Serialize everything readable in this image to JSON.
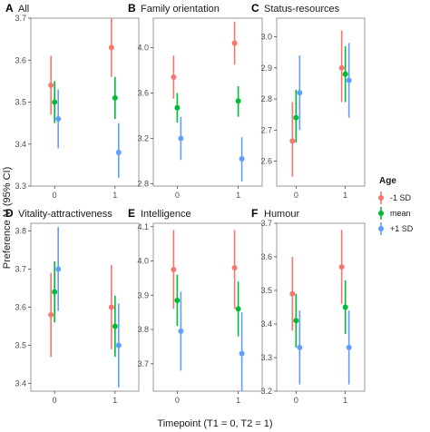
{
  "xlabel": "Timepoint (T1 = 0, T2 = 1)",
  "ylabel": "Preference M (95% CI)",
  "legend": {
    "title": "Age",
    "entries": [
      {
        "label": "-1 SD",
        "color": "#F8766D"
      },
      {
        "label": "mean",
        "color": "#00BA38"
      },
      {
        "label": "+1 SD",
        "color": "#619CFF"
      }
    ]
  },
  "chart_data": [
    {
      "type": "scatter",
      "letter": "A",
      "title": "All",
      "ylim": [
        3.3,
        3.7
      ],
      "yticks": [
        "3.3",
        "3.4",
        "3.5",
        "3.6",
        "3.7"
      ],
      "xticks": [
        "0",
        "1"
      ],
      "series": [
        {
          "name": "-1 SD",
          "points": [
            {
              "x": 0,
              "y": 3.54,
              "lo": 3.47,
              "hi": 3.61
            },
            {
              "x": 1,
              "y": 3.63,
              "lo": 3.56,
              "hi": 3.7
            }
          ]
        },
        {
          "name": "mean",
          "points": [
            {
              "x": 0,
              "y": 3.5,
              "lo": 3.45,
              "hi": 3.55
            },
            {
              "x": 1,
              "y": 3.51,
              "lo": 3.46,
              "hi": 3.56
            }
          ]
        },
        {
          "name": "+1 SD",
          "points": [
            {
              "x": 0,
              "y": 3.46,
              "lo": 3.39,
              "hi": 3.53
            },
            {
              "x": 1,
              "y": 3.38,
              "lo": 3.32,
              "hi": 3.45
            }
          ]
        }
      ]
    },
    {
      "type": "scatter",
      "letter": "B",
      "title": "Family orientation",
      "ylim": [
        2.78,
        4.26
      ],
      "yticks": [
        "2.8",
        "3.2",
        "3.6",
        "4.0"
      ],
      "xticks": [
        "0",
        "1"
      ],
      "series": [
        {
          "name": "-1 SD",
          "points": [
            {
              "x": 0,
              "y": 3.74,
              "lo": 3.55,
              "hi": 3.93
            },
            {
              "x": 1,
              "y": 4.04,
              "lo": 3.85,
              "hi": 4.23
            }
          ]
        },
        {
          "name": "mean",
          "points": [
            {
              "x": 0,
              "y": 3.47,
              "lo": 3.34,
              "hi": 3.6
            },
            {
              "x": 1,
              "y": 3.53,
              "lo": 3.39,
              "hi": 3.66
            }
          ]
        },
        {
          "name": "+1 SD",
          "points": [
            {
              "x": 0,
              "y": 3.2,
              "lo": 3.01,
              "hi": 3.39
            },
            {
              "x": 1,
              "y": 3.02,
              "lo": 2.82,
              "hi": 3.21
            }
          ]
        }
      ]
    },
    {
      "type": "scatter",
      "letter": "C",
      "title": "Status-resources",
      "ylim": [
        2.52,
        3.06
      ],
      "yticks": [
        "2.6",
        "2.7",
        "2.8",
        "2.9",
        "3.0"
      ],
      "xticks": [
        "0",
        "1"
      ],
      "series": [
        {
          "name": "-1 SD",
          "points": [
            {
              "x": 0,
              "y": 2.665,
              "lo": 2.55,
              "hi": 2.79
            },
            {
              "x": 1,
              "y": 2.9,
              "lo": 2.79,
              "hi": 3.02
            }
          ]
        },
        {
          "name": "mean",
          "points": [
            {
              "x": 0,
              "y": 2.74,
              "lo": 2.66,
              "hi": 2.83
            },
            {
              "x": 1,
              "y": 2.88,
              "lo": 2.79,
              "hi": 2.97
            }
          ]
        },
        {
          "name": "+1 SD",
          "points": [
            {
              "x": 0,
              "y": 2.82,
              "lo": 2.7,
              "hi": 2.94
            },
            {
              "x": 1,
              "y": 2.86,
              "lo": 2.74,
              "hi": 2.98
            }
          ]
        }
      ]
    },
    {
      "type": "scatter",
      "letter": "D",
      "title": "Vitality-attractiveness",
      "ylim": [
        3.38,
        3.82
      ],
      "yticks": [
        "3.4",
        "3.5",
        "3.6",
        "3.7",
        "3.8"
      ],
      "xticks": [
        "0",
        "1"
      ],
      "series": [
        {
          "name": "-1 SD",
          "points": [
            {
              "x": 0,
              "y": 3.58,
              "lo": 3.47,
              "hi": 3.69
            },
            {
              "x": 1,
              "y": 3.6,
              "lo": 3.49,
              "hi": 3.71
            }
          ]
        },
        {
          "name": "mean",
          "points": [
            {
              "x": 0,
              "y": 3.64,
              "lo": 3.56,
              "hi": 3.72
            },
            {
              "x": 1,
              "y": 3.55,
              "lo": 3.47,
              "hi": 3.63
            }
          ]
        },
        {
          "name": "+1 SD",
          "points": [
            {
              "x": 0,
              "y": 3.7,
              "lo": 3.59,
              "hi": 3.81
            },
            {
              "x": 1,
              "y": 3.5,
              "lo": 3.39,
              "hi": 3.61
            }
          ]
        }
      ]
    },
    {
      "type": "scatter",
      "letter": "E",
      "title": "Intelligence",
      "ylim": [
        3.62,
        4.11
      ],
      "yticks": [
        "3.7",
        "3.8",
        "3.9",
        "4.0",
        "4.1"
      ],
      "xticks": [
        "0",
        "1"
      ],
      "series": [
        {
          "name": "-1 SD",
          "points": [
            {
              "x": 0,
              "y": 3.975,
              "lo": 3.86,
              "hi": 4.09
            },
            {
              "x": 1,
              "y": 3.98,
              "lo": 3.86,
              "hi": 4.09
            }
          ]
        },
        {
          "name": "mean",
          "points": [
            {
              "x": 0,
              "y": 3.885,
              "lo": 3.81,
              "hi": 3.96
            },
            {
              "x": 1,
              "y": 3.86,
              "lo": 3.78,
              "hi": 3.94
            }
          ]
        },
        {
          "name": "+1 SD",
          "points": [
            {
              "x": 0,
              "y": 3.795,
              "lo": 3.68,
              "hi": 3.91
            },
            {
              "x": 1,
              "y": 3.73,
              "lo": 3.62,
              "hi": 3.85
            }
          ]
        }
      ]
    },
    {
      "type": "scatter",
      "letter": "F",
      "title": "Humour",
      "ylim": [
        3.2,
        3.7
      ],
      "yticks": [
        "3.2",
        "3.3",
        "3.4",
        "3.5",
        "3.6",
        "3.7"
      ],
      "xticks": [
        "0",
        "1"
      ],
      "series": [
        {
          "name": "-1 SD",
          "points": [
            {
              "x": 0,
              "y": 3.49,
              "lo": 3.38,
              "hi": 3.6
            },
            {
              "x": 1,
              "y": 3.57,
              "lo": 3.46,
              "hi": 3.68
            }
          ]
        },
        {
          "name": "mean",
          "points": [
            {
              "x": 0,
              "y": 3.41,
              "lo": 3.33,
              "hi": 3.49
            },
            {
              "x": 1,
              "y": 3.45,
              "lo": 3.37,
              "hi": 3.53
            }
          ]
        },
        {
          "name": "+1 SD",
          "points": [
            {
              "x": 0,
              "y": 3.33,
              "lo": 3.22,
              "hi": 3.44
            },
            {
              "x": 1,
              "y": 3.33,
              "lo": 3.22,
              "hi": 3.44
            }
          ]
        }
      ]
    }
  ]
}
